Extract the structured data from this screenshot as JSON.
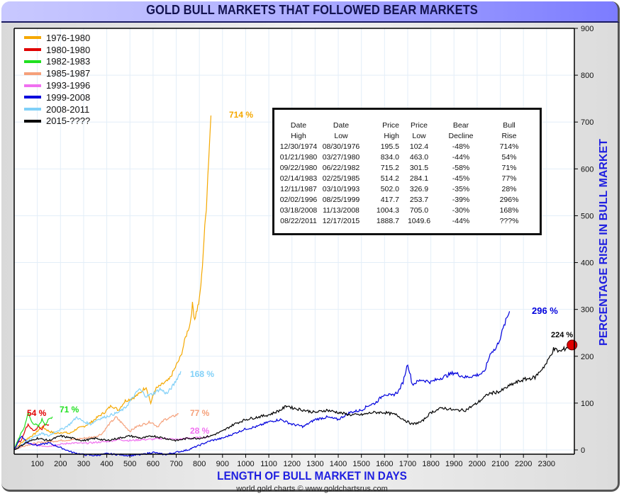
{
  "window": {
    "title": "GOLD BULL MARKETS THAT FOLLOWED BEAR MARKETS"
  },
  "footer": "world gold charts © www.goldchartsrus.com",
  "chart_data": {
    "type": "line",
    "title": "GOLD BULL MARKETS THAT FOLLOWED BEAR MARKETS",
    "xlabel": "LENGTH OF BULL MARKET IN DAYS",
    "ylabel": "PERCENTAGE RISE IN BULL MARKET",
    "xlim": [
      0,
      2420
    ],
    "ylim": [
      0,
      900
    ],
    "x_ticks": [
      100,
      200,
      300,
      400,
      500,
      600,
      700,
      800,
      900,
      1000,
      1100,
      1200,
      1300,
      1400,
      1500,
      1600,
      1700,
      1800,
      1900,
      2000,
      2100,
      2200,
      2300
    ],
    "y_ticks": [
      0,
      100,
      200,
      300,
      400,
      500,
      600,
      700,
      800,
      900
    ],
    "y_axis_side": "right",
    "grid": true,
    "legend_position": "top-left",
    "series": [
      {
        "name": "1976-1980",
        "color": "#f5a800",
        "label": "714 %",
        "label_color": "#f5a800",
        "x": [
          0,
          30,
          60,
          90,
          120,
          150,
          180,
          210,
          240,
          270,
          300,
          330,
          360,
          390,
          420,
          450,
          480,
          510,
          540,
          570,
          590,
          610,
          640,
          670,
          700,
          720,
          740,
          760,
          770,
          780,
          790,
          800,
          810,
          820,
          830,
          840,
          850
        ],
        "y": [
          0,
          15,
          25,
          35,
          50,
          40,
          35,
          38,
          35,
          45,
          50,
          58,
          70,
          80,
          95,
          85,
          105,
          110,
          120,
          135,
          100,
          130,
          140,
          150,
          180,
          200,
          240,
          270,
          310,
          280,
          300,
          320,
          370,
          450,
          520,
          620,
          714
        ]
      },
      {
        "name": "1980-1980",
        "color": "#e00000",
        "label": "54 %",
        "label_color": "#e00000",
        "x": [
          0,
          15,
          30,
          45,
          60,
          75,
          90,
          105,
          120,
          135,
          150
        ],
        "y": [
          0,
          15,
          20,
          40,
          55,
          45,
          40,
          50,
          45,
          55,
          54
        ]
      },
      {
        "name": "1982-1983",
        "color": "#20e020",
        "label": "71 %",
        "label_color": "#20e020",
        "x": [
          0,
          15,
          30,
          45,
          60,
          75,
          90,
          105,
          120,
          135,
          150,
          165
        ],
        "y": [
          0,
          20,
          35,
          50,
          80,
          60,
          55,
          50,
          65,
          55,
          65,
          71
        ]
      },
      {
        "name": "1985-1987",
        "color": "#f5a07a",
        "label": "77 %",
        "label_color": "#f5a07a",
        "x": [
          0,
          50,
          100,
          150,
          200,
          250,
          300,
          350,
          380,
          410,
          440,
          470,
          500,
          530,
          560,
          590,
          620,
          650,
          680,
          710
        ],
        "y": [
          0,
          10,
          15,
          18,
          20,
          22,
          25,
          28,
          35,
          55,
          70,
          55,
          40,
          50,
          55,
          60,
          50,
          65,
          70,
          77
        ]
      },
      {
        "name": "1993-1996",
        "color": "#f070f0",
        "label": "28 %",
        "label_color": "#f070f0",
        "x": [
          0,
          50,
          100,
          150,
          200,
          250,
          300,
          350,
          400,
          450,
          500,
          550,
          600,
          650,
          700,
          750,
          800,
          840
        ],
        "y": [
          0,
          15,
          10,
          8,
          12,
          15,
          14,
          16,
          18,
          22,
          20,
          22,
          23,
          25,
          22,
          25,
          26,
          28
        ]
      },
      {
        "name": "1999-2008",
        "color": "#0000dd",
        "label": "296 %",
        "label_color": "#0000dd",
        "x": [
          0,
          30,
          60,
          100,
          150,
          200,
          250,
          300,
          350,
          400,
          450,
          500,
          550,
          600,
          650,
          700,
          750,
          800,
          850,
          900,
          950,
          1000,
          1050,
          1100,
          1150,
          1200,
          1250,
          1300,
          1350,
          1400,
          1450,
          1500,
          1530,
          1560,
          1600,
          1630,
          1660,
          1680,
          1700,
          1720,
          1760,
          1800,
          1850,
          1900,
          1950,
          2000,
          2030,
          2060,
          2080,
          2100,
          2120,
          2140
        ],
        "y": [
          0,
          30,
          15,
          10,
          15,
          5,
          -5,
          -10,
          -12,
          -8,
          -10,
          -12,
          -10,
          -5,
          -10,
          -5,
          0,
          10,
          20,
          25,
          35,
          45,
          50,
          60,
          65,
          55,
          50,
          65,
          70,
          65,
          80,
          85,
          95,
          100,
          120,
          115,
          125,
          145,
          185,
          140,
          150,
          145,
          155,
          165,
          155,
          160,
          165,
          210,
          215,
          240,
          270,
          296
        ]
      },
      {
        "name": "2008-2011",
        "color": "#80d0f8",
        "label": "168 %",
        "label_color": "#80d0f8",
        "x": [
          0,
          30,
          60,
          90,
          120,
          150,
          180,
          210,
          240,
          270,
          300,
          330,
          360,
          390,
          420,
          450,
          480,
          510,
          540,
          570,
          600,
          630,
          660,
          690,
          720
        ],
        "y": [
          0,
          10,
          20,
          30,
          35,
          30,
          40,
          45,
          55,
          70,
          60,
          55,
          65,
          70,
          75,
          80,
          90,
          110,
          130,
          115,
          120,
          130,
          120,
          140,
          168
        ]
      },
      {
        "name": "2015-????",
        "color": "#000000",
        "label": "224 %",
        "label_color": "#000000",
        "x": [
          0,
          50,
          100,
          150,
          200,
          250,
          300,
          350,
          400,
          450,
          500,
          550,
          600,
          650,
          700,
          750,
          800,
          850,
          900,
          950,
          1000,
          1050,
          1100,
          1150,
          1180,
          1200,
          1250,
          1300,
          1350,
          1400,
          1450,
          1500,
          1550,
          1600,
          1650,
          1700,
          1720,
          1760,
          1800,
          1850,
          1900,
          1950,
          2000,
          2050,
          2100,
          2150,
          2200,
          2250,
          2300,
          2330,
          2360,
          2390,
          2410
        ],
        "y": [
          0,
          15,
          25,
          20,
          30,
          25,
          20,
          25,
          20,
          25,
          30,
          25,
          30,
          25,
          20,
          25,
          25,
          30,
          40,
          55,
          65,
          70,
          75,
          85,
          95,
          90,
          85,
          80,
          85,
          80,
          75,
          75,
          80,
          80,
          75,
          60,
          55,
          60,
          80,
          90,
          85,
          85,
          100,
          120,
          125,
          140,
          150,
          155,
          185,
          215,
          210,
          220,
          224
        ]
      }
    ],
    "end_marker": {
      "series": "2015-????",
      "x": 2410,
      "y": 224,
      "color": "#e00000"
    },
    "table": {
      "headers": [
        [
          "Date",
          "High"
        ],
        [
          "Date",
          "Low"
        ],
        [
          "Price",
          "High"
        ],
        [
          "Price",
          "Low"
        ],
        [
          "Bear",
          "Decline"
        ],
        [
          "Bull",
          "Rise"
        ]
      ],
      "rows": [
        [
          "12/30/1974",
          "08/30/1976",
          "195.5",
          "102.4",
          "-48%",
          "714%"
        ],
        [
          "01/21/1980",
          "03/27/1980",
          "834.0",
          "463.0",
          "-44%",
          "54%"
        ],
        [
          "09/22/1980",
          "06/22/1982",
          "715.2",
          "301.5",
          "-58%",
          "71%"
        ],
        [
          "02/14/1983",
          "02/25/1985",
          "514.2",
          "284.1",
          "-45%",
          "77%"
        ],
        [
          "12/11/1987",
          "03/10/1993",
          "502.0",
          "326.9",
          "-35%",
          "28%"
        ],
        [
          "02/02/1996",
          "08/25/1999",
          "417.7",
          "253.7",
          "-39%",
          "296%"
        ],
        [
          "03/18/2008",
          "11/13/2008",
          "1004.3",
          "705.0",
          "-30%",
          "168%"
        ],
        [
          "08/22/2011",
          "12/17/2015",
          "1888.7",
          "1049.6",
          "-44%",
          "???%"
        ]
      ]
    }
  }
}
